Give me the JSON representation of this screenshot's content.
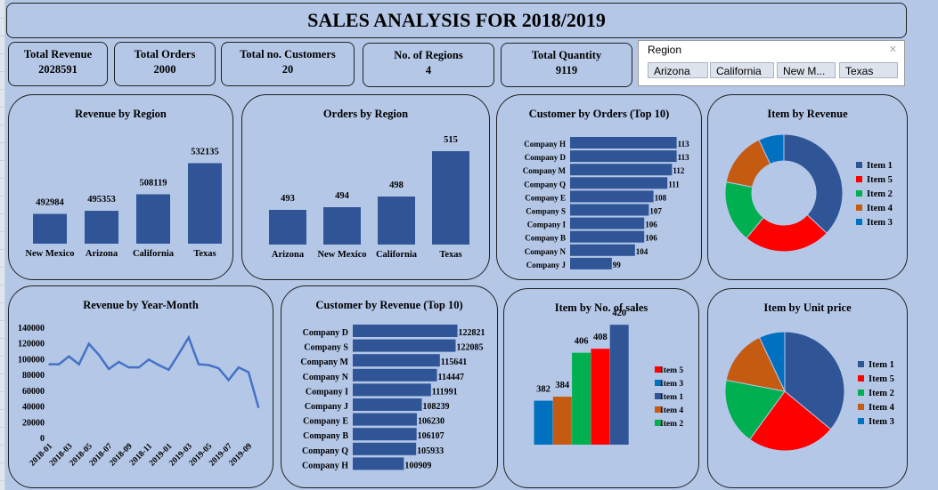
{
  "title": "SALES ANALYSIS FOR 2018/2019",
  "kpis": [
    {
      "label": "Total Revenue",
      "value": "2028591"
    },
    {
      "label": "Total Orders",
      "value": "2000"
    },
    {
      "label": "Total no. Customers",
      "value": "20"
    },
    {
      "label": "No. of Regions",
      "value": "4"
    },
    {
      "label": "Total Quantity",
      "value": "9119"
    }
  ],
  "slicer": {
    "label": "Region",
    "clear_icon": "clear-filter-icon",
    "options": [
      "Arizona",
      "California",
      "New M...",
      "Texas"
    ]
  },
  "colors": {
    "bar": "#2f5597",
    "background": "#b4c7e7",
    "item1": "#2f5597",
    "item5": "#ff0000",
    "item2": "#00b050",
    "item4": "#c55a11",
    "item3": "#0070c0"
  },
  "chart_data": [
    {
      "id": "revenue_by_region",
      "type": "bar",
      "title": "Revenue by Region",
      "categories": [
        "New Mexico",
        "Arizona",
        "California",
        "Texas"
      ],
      "values": [
        492984,
        495353,
        508119,
        532135
      ],
      "ylim": [
        470000,
        540000
      ]
    },
    {
      "id": "orders_by_region",
      "type": "bar",
      "title": "Orders by Region",
      "categories": [
        "Arizona",
        "New Mexico",
        "California",
        "Texas"
      ],
      "values": [
        493,
        494,
        498,
        515
      ],
      "ylim": [
        480,
        520
      ]
    },
    {
      "id": "customer_by_orders",
      "type": "bar",
      "orientation": "horizontal",
      "title": "Customer by Orders (Top 10)",
      "categories": [
        "Company H",
        "Company D",
        "Company M",
        "Company Q",
        "Company E",
        "Company S",
        "Company I",
        "Company B",
        "Company N",
        "Company J"
      ],
      "values": [
        113,
        113,
        112,
        111,
        108,
        107,
        106,
        106,
        104,
        99
      ],
      "xlim": [
        90,
        115
      ]
    },
    {
      "id": "item_by_revenue",
      "type": "pie",
      "donut": true,
      "title": "Item by Revenue",
      "categories": [
        "Item 1",
        "Item 5",
        "Item 2",
        "Item 4",
        "Item 3"
      ],
      "values": [
        37,
        24,
        17,
        15,
        7
      ],
      "legend": [
        "Item 1",
        "Item 5",
        "Item 2",
        "Item 4",
        "Item 3"
      ]
    },
    {
      "id": "revenue_by_year_month",
      "type": "line",
      "title": "Revenue by Year-Month",
      "x": [
        "2018-01",
        "2018-02",
        "2018-03",
        "2018-04",
        "2018-05",
        "2018-06",
        "2018-07",
        "2018-08",
        "2018-09",
        "2018-10",
        "2018-11",
        "2018-12",
        "2019-01",
        "2019-02",
        "2019-03",
        "2019-04",
        "2019-05",
        "2019-06",
        "2019-07",
        "2019-08",
        "2019-09",
        "2019-10"
      ],
      "xticks": [
        "2018-01",
        "2018-03",
        "2018-05",
        "2018-07",
        "2018-09",
        "2018-11",
        "2019-01",
        "2019-03",
        "2019-05",
        "2019-07",
        "2019-09"
      ],
      "values": [
        93000,
        93000,
        103000,
        93000,
        119000,
        105000,
        87000,
        96000,
        89000,
        89000,
        99000,
        92000,
        86000,
        106000,
        127000,
        93000,
        92000,
        88000,
        73000,
        89000,
        83000,
        38000
      ],
      "yticks": [
        "140000",
        "120000",
        "100000",
        "80000",
        "60000",
        "40000",
        "20000",
        "0"
      ],
      "ylim": [
        0,
        140000
      ]
    },
    {
      "id": "customer_by_revenue",
      "type": "bar",
      "orientation": "horizontal",
      "title": "Customer by Revenue (Top 10)",
      "categories": [
        "Company D",
        "Company S",
        "Company M",
        "Company N",
        "Company I",
        "Company J",
        "Company E",
        "Company B",
        "Company Q",
        "Company H"
      ],
      "values": [
        122821,
        122085,
        115641,
        114447,
        111991,
        108239,
        106230,
        106107,
        105933,
        100909
      ],
      "xlim": [
        80000,
        123000
      ]
    },
    {
      "id": "item_by_no_of_sales",
      "type": "bar",
      "title": "Item by No. of sales",
      "categories": [
        "Item 3",
        "Item 4",
        "Item 2",
        "Item 5",
        "Item 1"
      ],
      "values": [
        382,
        384,
        406,
        408,
        420
      ],
      "ylim": [
        360,
        425
      ],
      "legend": [
        "Item 5",
        "Item 3",
        "Item 1",
        "Item 4",
        "Item 2"
      ]
    },
    {
      "id": "item_by_unit_price",
      "type": "pie",
      "title": "Item by Unit price",
      "categories": [
        "Item 1",
        "Item 5",
        "Item 2",
        "Item 4",
        "Item 3"
      ],
      "values": [
        36,
        24,
        18,
        15,
        7
      ],
      "legend": [
        "Item 1",
        "Item 5",
        "Item 2",
        "Item 4",
        "Item 3"
      ]
    }
  ]
}
